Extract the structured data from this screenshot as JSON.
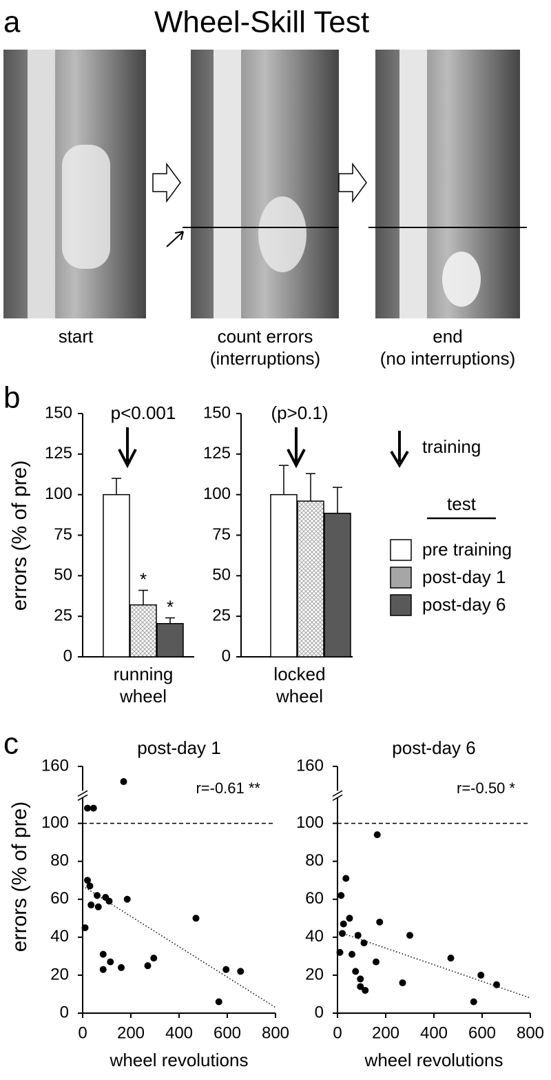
{
  "panel_labels": [
    "a",
    "b",
    "c"
  ],
  "title": "Wheel-Skill Test",
  "photos": [
    {
      "caption": [
        "start"
      ]
    },
    {
      "caption": [
        "count errors",
        "(interruptions)"
      ]
    },
    {
      "caption": [
        "end",
        "(no interruptions)"
      ]
    }
  ],
  "legend": {
    "arrow_label": "training",
    "title": "test"
  },
  "chart_data": [
    {
      "type": "bar",
      "annotation": "p<0.001",
      "xlabel": [
        "running",
        "wheel"
      ],
      "ylabel": "errors (% of pre)",
      "ylim": [
        0,
        150
      ],
      "yticks": [
        0,
        25,
        50,
        75,
        100,
        125,
        150
      ],
      "series": [
        {
          "name": "pre training",
          "color": "#ffffff",
          "values": [
            100
          ],
          "errors": [
            10
          ]
        },
        {
          "name": "post-day 1",
          "color": "#a6a6a6",
          "values": [
            32
          ],
          "errors": [
            9
          ],
          "sig": [
            "*"
          ]
        },
        {
          "name": "post-day 6",
          "color": "#595959",
          "values": [
            20.5
          ],
          "errors": [
            3.5
          ],
          "sig": [
            "*"
          ]
        }
      ]
    },
    {
      "type": "bar",
      "annotation": "(p>0.1)",
      "xlabel": [
        "locked",
        "wheel"
      ],
      "ylim": [
        0,
        150
      ],
      "yticks": [
        0,
        25,
        50,
        75,
        100,
        125,
        150
      ],
      "series": [
        {
          "color": "#ffffff",
          "values": [
            100
          ],
          "errors": [
            18
          ]
        },
        {
          "color": "#a6a6a6",
          "values": [
            96
          ],
          "errors": [
            17
          ]
        },
        {
          "color": "#595959",
          "values": [
            88.5
          ],
          "errors": [
            16
          ]
        }
      ]
    },
    {
      "type": "scatter",
      "title": "post-day 1",
      "annotation": "r=-0.61 **",
      "xlabel": "wheel revolutions",
      "ylabel": "errors (% of pre)",
      "xlim": [
        0,
        800
      ],
      "xticks": [
        0,
        200,
        400,
        600,
        800
      ],
      "ylim": [
        0,
        160
      ],
      "yticks": [
        0,
        20,
        40,
        60,
        80,
        100,
        160
      ],
      "axis_break": [
        115,
        145
      ],
      "reference_line": 100,
      "color": "#000000",
      "x": [
        10,
        20,
        45,
        170,
        20,
        30,
        35,
        60,
        65,
        95,
        110,
        85,
        85,
        115,
        160,
        185,
        270,
        295,
        470,
        565,
        595,
        655
      ],
      "y": [
        45,
        108,
        108,
        152,
        70,
        67,
        57,
        62,
        56,
        61,
        59,
        31,
        23,
        27,
        24,
        60,
        25,
        29,
        50,
        6,
        23,
        22
      ],
      "trend": {
        "x": [
          0,
          800
        ],
        "y": [
          67,
          3
        ]
      }
    },
    {
      "type": "scatter",
      "title": "post-day 6",
      "annotation": "r=-0.50 *",
      "xlabel": "wheel revolutions",
      "xlim": [
        0,
        800
      ],
      "xticks": [
        0,
        200,
        400,
        600,
        800
      ],
      "ylim": [
        0,
        160
      ],
      "yticks": [
        0,
        20,
        40,
        60,
        80,
        100,
        160
      ],
      "axis_break": [
        115,
        145
      ],
      "reference_line": 100,
      "color": "#000000",
      "x": [
        10,
        20,
        15,
        25,
        35,
        50,
        60,
        75,
        85,
        95,
        95,
        110,
        115,
        160,
        165,
        175,
        270,
        300,
        470,
        565,
        595,
        660
      ],
      "y": [
        32,
        42,
        62,
        47,
        71,
        50,
        31,
        22,
        41,
        18,
        14,
        37,
        12,
        27,
        94,
        48,
        16,
        41,
        29,
        6,
        20,
        15
      ],
      "trend": {
        "x": [
          0,
          800
        ],
        "y": [
          43,
          8
        ]
      }
    }
  ]
}
